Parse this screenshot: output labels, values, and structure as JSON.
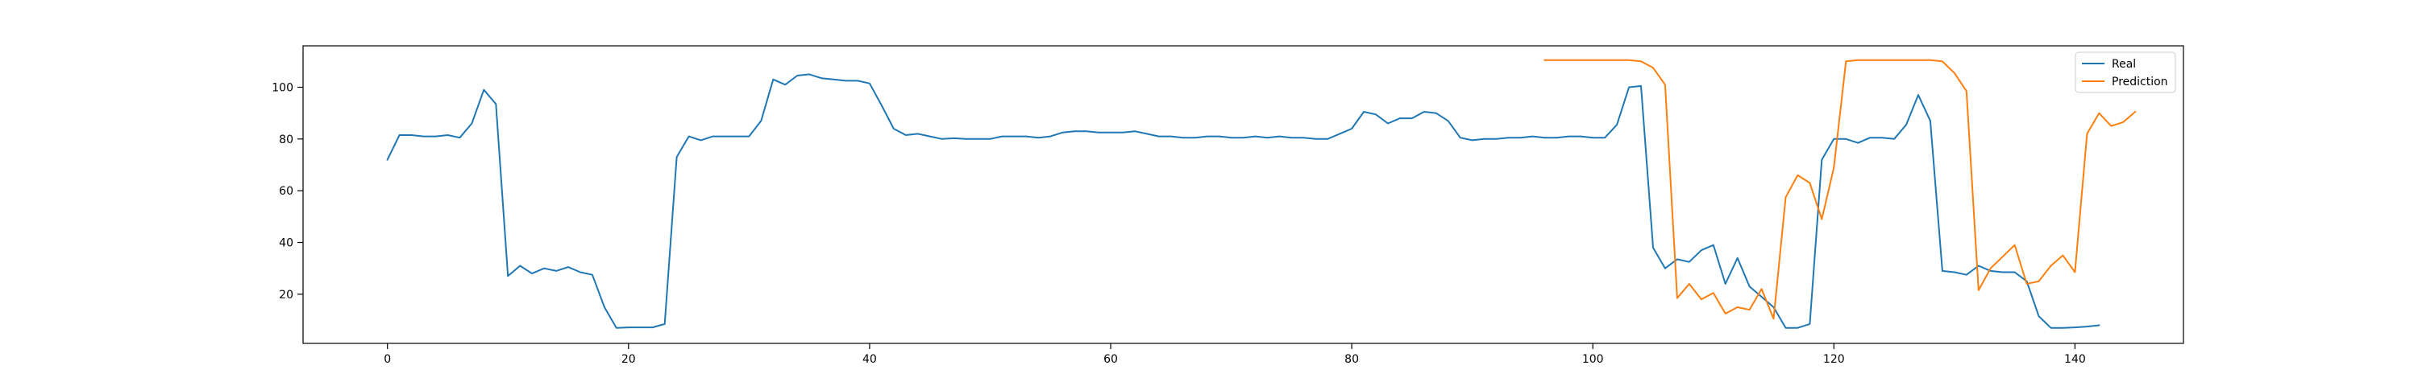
{
  "chart_data": {
    "type": "line",
    "title": "",
    "xlabel": "",
    "ylabel": "",
    "xlim": [
      -7,
      149
    ],
    "ylim": [
      1,
      116
    ],
    "xticks": [
      0,
      20,
      40,
      60,
      80,
      100,
      120,
      140
    ],
    "yticks": [
      20,
      40,
      60,
      80,
      100
    ],
    "grid": false,
    "legend": {
      "placement": "top-right"
    },
    "series": [
      {
        "name": "Real",
        "color": "#1f77b4",
        "x_start": 0,
        "values": [
          72,
          81.5,
          81.5,
          81,
          81,
          81.5,
          80.5,
          86,
          99,
          93.5,
          27,
          31,
          28,
          30,
          29,
          30.5,
          28.5,
          27.5,
          15,
          7,
          7.2,
          7.2,
          7.2,
          8.5,
          73,
          81,
          79.5,
          81,
          81,
          81,
          81,
          87,
          103,
          101,
          104.5,
          105,
          103.5,
          103,
          102.5,
          102.5,
          101.5,
          93,
          84,
          81.5,
          82,
          81,
          80,
          80.3,
          80,
          80,
          80,
          81,
          81,
          81,
          80.5,
          81,
          82.5,
          83,
          83,
          82.5,
          82.5,
          82.5,
          83,
          82,
          81,
          81,
          80.5,
          80.5,
          81,
          81,
          80.5,
          80.5,
          81,
          80.5,
          81,
          80.5,
          80.5,
          80,
          80,
          82,
          84,
          90.5,
          89.5,
          86,
          88,
          88,
          90.5,
          90,
          87,
          80.5,
          79.5,
          80,
          80,
          80.5,
          80.5,
          81,
          80.5,
          80.5,
          81,
          81,
          80.5,
          80.5,
          85.5,
          100,
          100.5,
          38,
          30,
          33.5,
          32.5,
          37,
          39,
          24,
          34,
          23,
          19,
          15,
          7,
          7,
          8.5,
          72,
          80,
          80,
          78.5,
          80.5,
          80.5,
          80,
          85.5,
          97,
          87,
          29,
          28.5,
          27.5,
          31,
          29,
          28.5,
          28.5,
          25,
          11.5,
          7,
          7,
          7.2,
          7.5,
          8
        ]
      },
      {
        "name": "Prediction",
        "color": "#ff7f0e",
        "x_start": 96,
        "values": [
          110.5,
          110.5,
          110.5,
          110.5,
          110.5,
          110.5,
          110.5,
          110.5,
          110,
          107.5,
          101,
          18.5,
          24,
          18,
          20.5,
          12.5,
          15,
          14,
          22,
          10.5,
          57.5,
          66,
          63,
          49,
          69,
          110,
          110.5,
          110.5,
          110.5,
          110.5,
          110.5,
          110.5,
          110.5,
          110,
          105.5,
          98.5,
          21.5,
          30,
          34.5,
          39,
          24,
          25,
          31,
          35,
          28.5,
          82,
          90,
          85,
          86.5,
          90.5
        ]
      }
    ]
  }
}
